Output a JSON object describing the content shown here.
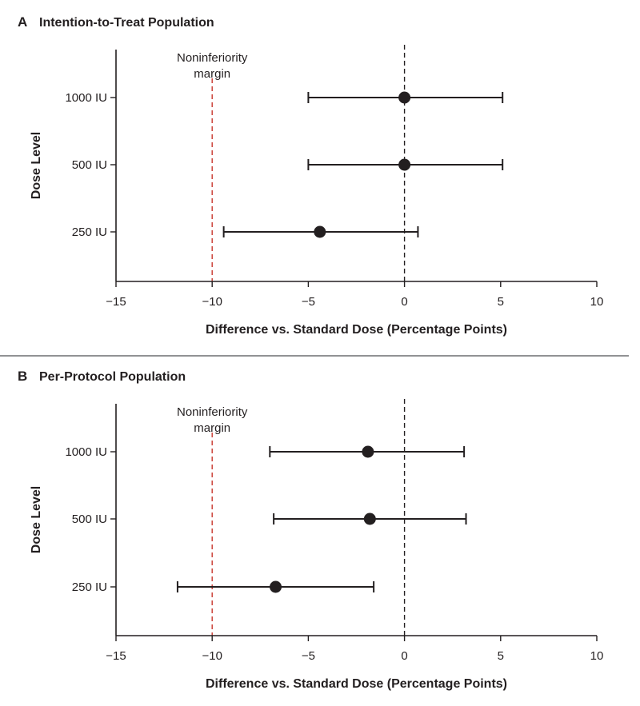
{
  "chart_data": [
    {
      "type": "forest",
      "panel_letter": "A",
      "title": "Intention-to-Treat Population",
      "xlabel": "Difference vs. Standard Dose (Percentage Points)",
      "ylabel": "Dose Level",
      "xlim": [
        -15,
        10
      ],
      "xticks": [
        -15,
        -10,
        -5,
        0,
        5,
        10
      ],
      "xtick_labels": [
        "−15",
        "−10",
        "−5",
        "0",
        "5",
        "10"
      ],
      "categories": [
        "1000 IU",
        "500 IU",
        "250 IU"
      ],
      "points": [
        {
          "label": "1000 IU",
          "estimate": 0.0,
          "lower": -5.0,
          "upper": 5.1
        },
        {
          "label": "500 IU",
          "estimate": 0.0,
          "lower": -5.0,
          "upper": 5.1
        },
        {
          "label": "250 IU",
          "estimate": -4.4,
          "lower": -9.4,
          "upper": 0.7
        }
      ],
      "reference_lines": [
        {
          "x": -10,
          "label": "Noninferiority margin",
          "label_lines": [
            "Noninferiority",
            "margin"
          ],
          "color": "#c8372d",
          "style": "dashed"
        },
        {
          "x": 0,
          "label": "",
          "color": "#231f20",
          "style": "dashed"
        }
      ]
    },
    {
      "type": "forest",
      "panel_letter": "B",
      "title": "Per-Protocol Population",
      "xlabel": "Difference vs. Standard Dose (Percentage Points)",
      "ylabel": "Dose Level",
      "xlim": [
        -15,
        10
      ],
      "xticks": [
        -15,
        -10,
        -5,
        0,
        5,
        10
      ],
      "xtick_labels": [
        "−15",
        "−10",
        "−5",
        "0",
        "5",
        "10"
      ],
      "categories": [
        "1000 IU",
        "500 IU",
        "250 IU"
      ],
      "points": [
        {
          "label": "1000 IU",
          "estimate": -1.9,
          "lower": -7.0,
          "upper": 3.1
        },
        {
          "label": "500 IU",
          "estimate": -1.8,
          "lower": -6.8,
          "upper": 3.2
        },
        {
          "label": "250 IU",
          "estimate": -6.7,
          "lower": -11.8,
          "upper": -1.6
        }
      ],
      "reference_lines": [
        {
          "x": -10,
          "label": "Noninferiority margin",
          "label_lines": [
            "Noninferiority",
            "margin"
          ],
          "color": "#c8372d",
          "style": "dashed"
        },
        {
          "x": 0,
          "label": "",
          "color": "#231f20",
          "style": "dashed"
        }
      ]
    }
  ],
  "colors": {
    "ink": "#231f20",
    "margin_line": "#c8372d",
    "divider": "#6d6e71"
  }
}
